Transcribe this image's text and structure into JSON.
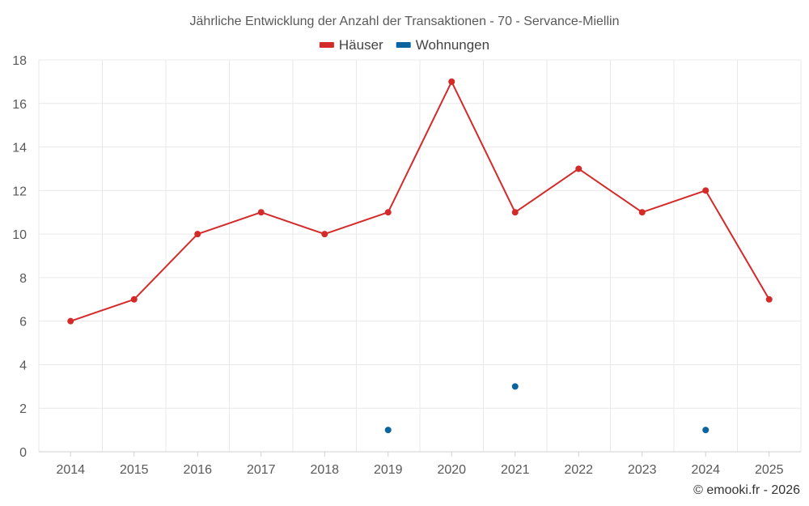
{
  "chart_data": {
    "type": "line",
    "title": "Jährliche Entwicklung der Anzahl der Transaktionen - 70 - Servance-Miellin",
    "categories": [
      "2014",
      "2015",
      "2016",
      "2017",
      "2018",
      "2019",
      "2020",
      "2021",
      "2022",
      "2023",
      "2024",
      "2025"
    ],
    "series": [
      {
        "name": "Häuser",
        "color": "#d42a2a",
        "style": "line-with-markers",
        "values": [
          6,
          7,
          10,
          11,
          10,
          11,
          17,
          11,
          13,
          11,
          12,
          7
        ]
      },
      {
        "name": "Wohnungen",
        "color": "#0a64a0",
        "style": "markers-only",
        "values": [
          null,
          null,
          null,
          null,
          null,
          1,
          null,
          3,
          null,
          null,
          1,
          null
        ]
      }
    ],
    "y_ticks": [
      "0",
      "2",
      "4",
      "6",
      "8",
      "10",
      "12",
      "14",
      "16",
      "18"
    ],
    "ylim": [
      0,
      18
    ],
    "xlabel": "",
    "ylabel": "",
    "grid": true,
    "legend_position": "top-center"
  },
  "credit": "© emooki.fr - 2026"
}
